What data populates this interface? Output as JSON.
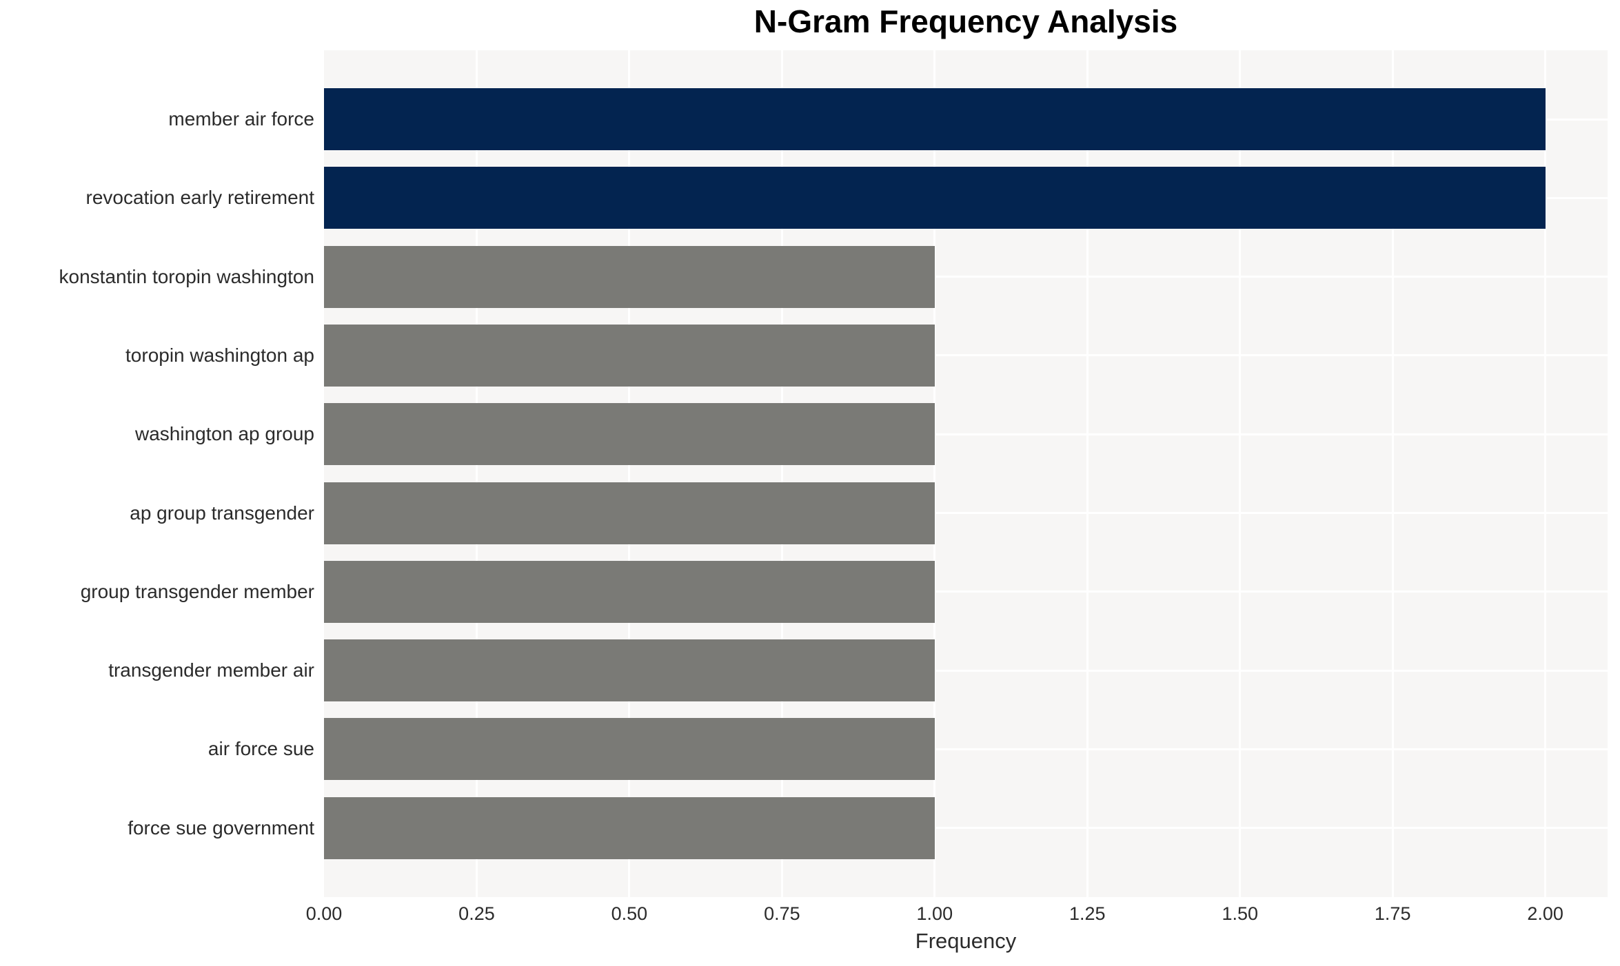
{
  "chart_data": {
    "type": "bar",
    "orientation": "horizontal",
    "title": "N-Gram Frequency Analysis",
    "xlabel": "Frequency",
    "ylabel": "",
    "categories": [
      "member air force",
      "revocation early retirement",
      "konstantin toropin washington",
      "toropin washington ap",
      "washington ap group",
      "ap group transgender",
      "group transgender member",
      "transgender member air",
      "air force sue",
      "force sue government"
    ],
    "values": [
      2,
      2,
      1,
      1,
      1,
      1,
      1,
      1,
      1,
      1
    ],
    "bar_colors": [
      "#032450",
      "#032450",
      "#7a7a76",
      "#7a7a76",
      "#7a7a76",
      "#7a7a76",
      "#7a7a76",
      "#7a7a76",
      "#7a7a76",
      "#7a7a76"
    ],
    "xtick_labels": [
      "0.00",
      "0.25",
      "0.50",
      "0.75",
      "1.00",
      "1.25",
      "1.50",
      "1.75",
      "2.00"
    ],
    "xtick_values": [
      0,
      0.25,
      0.5,
      0.75,
      1.0,
      1.25,
      1.5,
      1.75,
      2.0
    ],
    "xlim": [
      0,
      2.102
    ],
    "grid": true,
    "legend": false,
    "plot_background": "#f7f6f5",
    "grid_color": "#ffffff",
    "highlight_color": "#032450",
    "default_bar_color": "#7a7a76",
    "text_color": "#2b2b2b",
    "title_color": "#000000"
  }
}
